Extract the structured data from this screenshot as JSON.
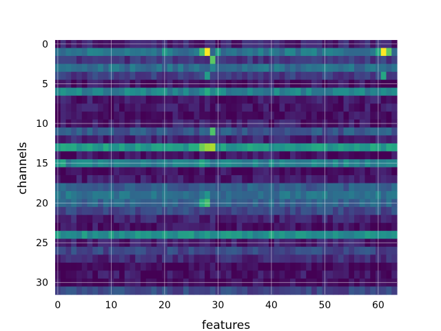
{
  "chart_data": {
    "type": "heatmap",
    "title": "",
    "xlabel": "features",
    "ylabel": "channels",
    "n_cols": 64,
    "n_rows": 32,
    "xlim": [
      -0.5,
      63.5
    ],
    "ylim": [
      31.5,
      -0.5
    ],
    "x_ticks": [
      0,
      10,
      20,
      30,
      40,
      50,
      60
    ],
    "y_ticks": [
      0,
      5,
      10,
      15,
      20,
      25,
      30
    ],
    "grid": true,
    "colormap": "viridis",
    "color_scale": [
      0,
      1
    ],
    "row_base_intensity": [
      0.1,
      0.4,
      0.16,
      0.36,
      0.18,
      0.05,
      0.45,
      0.07,
      0.06,
      0.04,
      0.08,
      0.28,
      0.1,
      0.55,
      0.05,
      0.45,
      0.04,
      0.08,
      0.3,
      0.38,
      0.32,
      0.22,
      0.1,
      0.05,
      0.5,
      0.08,
      0.22,
      0.12,
      0.02,
      0.05,
      0.02,
      0.22
    ],
    "highlights": [
      {
        "row": 1,
        "col": 28,
        "value": 1.0
      },
      {
        "row": 1,
        "col": 27,
        "value": 0.7
      },
      {
        "row": 1,
        "col": 30,
        "value": 0.55
      },
      {
        "row": 1,
        "col": 61,
        "value": 1.0
      },
      {
        "row": 1,
        "col": 60,
        "value": 0.6
      },
      {
        "row": 1,
        "col": 62,
        "value": 0.75
      },
      {
        "row": 1,
        "col": 20,
        "value": 0.55
      },
      {
        "row": 2,
        "col": 29,
        "value": 0.75
      },
      {
        "row": 3,
        "col": 29,
        "value": 0.45
      },
      {
        "row": 4,
        "col": 28,
        "value": 0.55
      },
      {
        "row": 4,
        "col": 61,
        "value": 0.6
      },
      {
        "row": 6,
        "col": 28,
        "value": 0.62
      },
      {
        "row": 6,
        "col": 30,
        "value": 0.55
      },
      {
        "row": 11,
        "col": 29,
        "value": 0.72
      },
      {
        "row": 13,
        "col": 27,
        "value": 0.78
      },
      {
        "row": 13,
        "col": 28,
        "value": 0.85
      },
      {
        "row": 13,
        "col": 29,
        "value": 0.88
      },
      {
        "row": 13,
        "col": 26,
        "value": 0.62
      },
      {
        "row": 13,
        "col": 36,
        "value": 0.62
      },
      {
        "row": 15,
        "col": 27,
        "value": 0.6
      },
      {
        "row": 15,
        "col": 1,
        "value": 0.6
      },
      {
        "row": 19,
        "col": 28,
        "value": 0.52
      },
      {
        "row": 20,
        "col": 28,
        "value": 0.7
      },
      {
        "row": 20,
        "col": 27,
        "value": 0.62
      },
      {
        "row": 24,
        "col": 40,
        "value": 0.6
      }
    ]
  }
}
